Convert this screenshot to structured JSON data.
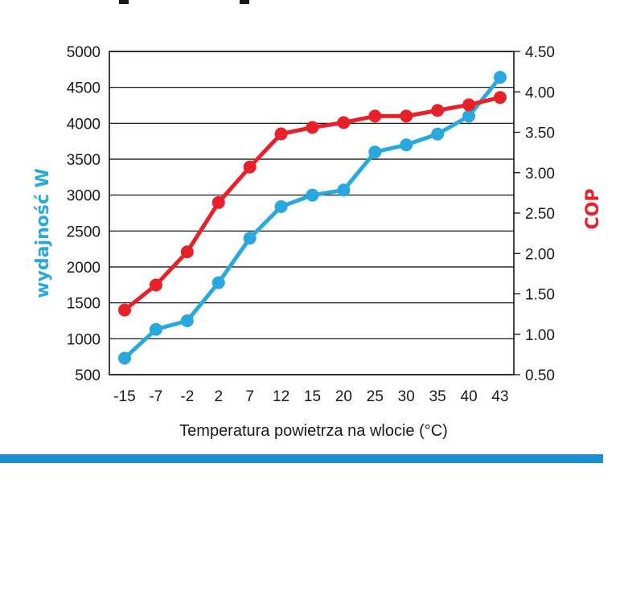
{
  "colors": {
    "capacity": "#29a8e0",
    "cop": "#e8202a",
    "accent_bar": "#1a8ed4",
    "grid": "#000000"
  },
  "chart_data": {
    "type": "line",
    "title": "",
    "xlabel": "Temperatura powietrza na wlocie (°C)",
    "ylabel": "wydajność W",
    "y2label": "COP",
    "categories": [
      "-15",
      "-7",
      "-2",
      "2",
      "7",
      "12",
      "15",
      "20",
      "25",
      "30",
      "35",
      "40",
      "43"
    ],
    "ylim": [
      500,
      5000
    ],
    "y2lim": [
      0.5,
      4.5
    ],
    "yticks": [
      "500",
      "1000",
      "1500",
      "2000",
      "2500",
      "3000",
      "3500",
      "4000",
      "4500",
      "5000"
    ],
    "y2ticks": [
      "0.50",
      "1.00",
      "1.50",
      "2.00",
      "2.50",
      "3.00",
      "3.50",
      "4.00",
      "4.50"
    ],
    "grid": true,
    "series": [
      {
        "axis": "left",
        "color": "#29a8e0",
        "values": [
          730,
          1130,
          1250,
          1780,
          2400,
          2840,
          3000,
          3070,
          3600,
          3700,
          3850,
          4100,
          4640
        ]
      },
      {
        "axis": "right",
        "color": "#e8202a",
        "values": [
          1.3,
          1.61,
          2.02,
          2.63,
          3.07,
          3.48,
          3.56,
          3.62,
          3.7,
          3.7,
          3.77,
          3.84,
          3.93
        ]
      }
    ]
  }
}
